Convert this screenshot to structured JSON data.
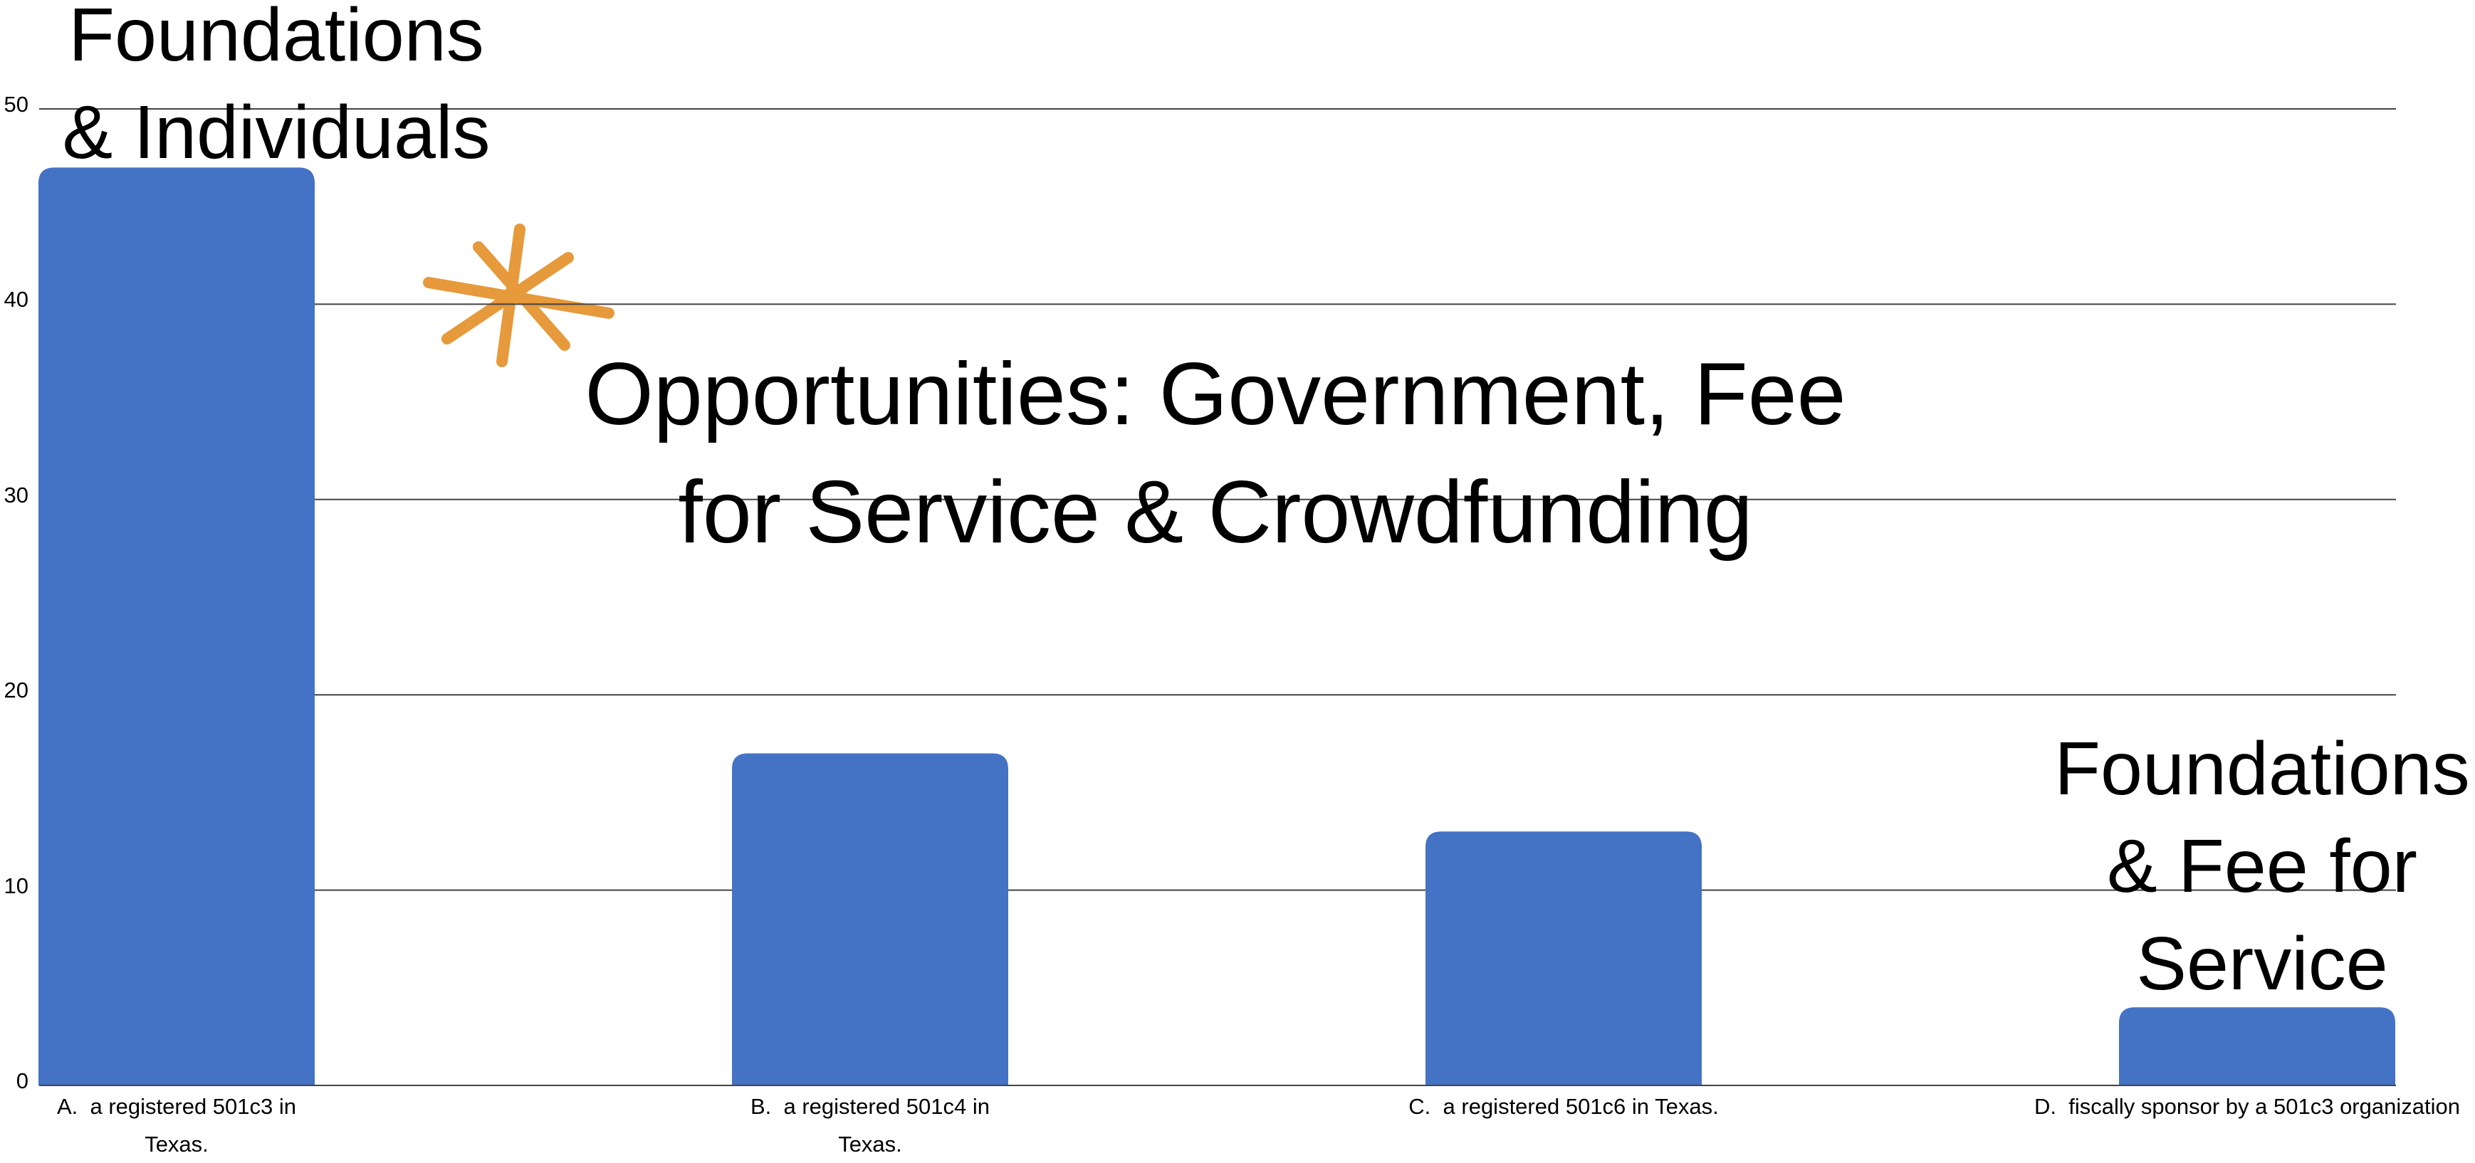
{
  "chart_data": {
    "type": "bar",
    "title": "Opportunities: Government, Fee\nfor Service & Crowdfunding",
    "categories": [
      "A.  a registered 501c3 in\nTexas.",
      "B.  a registered 501c4 in\nTexas.",
      "C.  a registered 501c6 in Texas.",
      "D.  fiscally sponsor by a 501c3 organization"
    ],
    "values": [
      47,
      17,
      13,
      4
    ],
    "color": "#4472c4",
    "ylim": [
      0,
      50
    ],
    "yticks": [
      0,
      10,
      20,
      30,
      40,
      50
    ],
    "grid": true,
    "annotations": [
      "Foundations\n& Individuals",
      "Foundations\n& Fee for\nService"
    ]
  }
}
